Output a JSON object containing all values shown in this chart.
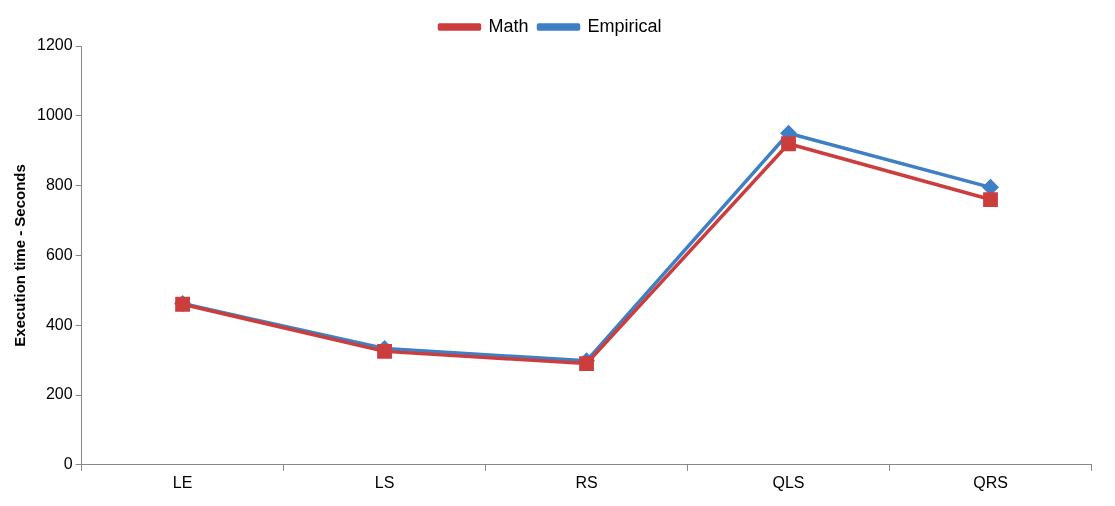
{
  "chart_data": {
    "type": "line",
    "ylabel": "Execution time - Seconds",
    "categories": [
      "LE",
      "LS",
      "RS",
      "QLS",
      "QRS"
    ],
    "series": [
      {
        "name": "Empirical",
        "color": "#3f7fc4",
        "marker": "diamond",
        "values": [
          462,
          333,
          298,
          950,
          795
        ]
      },
      {
        "name": "Math",
        "color": "#cc3d3d",
        "marker": "square",
        "values": [
          460,
          325,
          290,
          920,
          760
        ]
      }
    ],
    "ylim": [
      0,
      1200
    ],
    "yticks": [
      0,
      200,
      400,
      600,
      800,
      1000,
      1200
    ],
    "grid": false,
    "legend": "top",
    "line_style": "solid"
  }
}
